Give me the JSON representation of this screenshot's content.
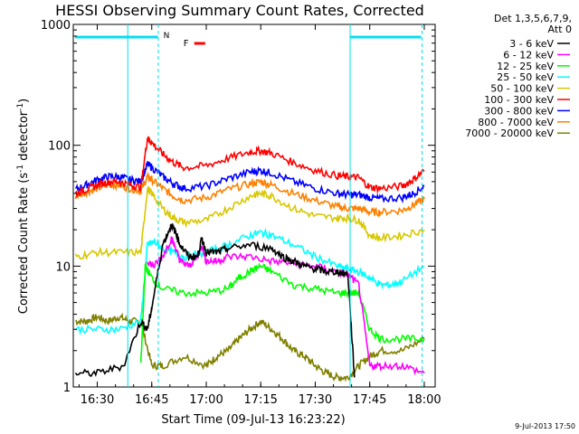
{
  "chart_data": {
    "type": "line",
    "title": "HESSI Observing Summary Count Rates, Corrected",
    "xlabel": "Start Time (09-Jul-13 16:23:22)",
    "ylabel": "Corrected Count Rate (s",
    "ylabel_sup": "-1",
    "ylabel_mid": " detector",
    "ylabel_end": ")",
    "y_scale": "log",
    "ylim": [
      1,
      1000
    ],
    "xlim": [
      16.39,
      18.05
    ],
    "y_ticks": [
      {
        "value": 1,
        "label": "1"
      },
      {
        "value": 10,
        "label": "10"
      },
      {
        "value": 100,
        "label": "100"
      },
      {
        "value": 1000,
        "label": "1000"
      }
    ],
    "x_ticks": [
      {
        "value": 16.5,
        "label": "16:30"
      },
      {
        "value": 16.75,
        "label": "16:45"
      },
      {
        "value": 17.0,
        "label": "17:00"
      },
      {
        "value": 17.25,
        "label": "17:15"
      },
      {
        "value": 17.5,
        "label": "17:30"
      },
      {
        "value": 17.75,
        "label": "17:45"
      },
      {
        "value": 18.0,
        "label": "18:00"
      }
    ],
    "legend": {
      "header1": "Det 1,3,5,6,7,9,",
      "header2": "Att 0",
      "placement": "right"
    },
    "series": [
      {
        "name": "3 - 6 keV",
        "color": "#000000",
        "x": [
          16.4,
          16.5,
          16.62,
          16.7,
          16.73,
          16.75,
          16.8,
          16.84,
          16.86,
          16.88,
          16.92,
          16.96,
          16.98,
          17.0,
          17.05,
          17.1,
          17.2,
          17.3,
          17.35,
          17.4,
          17.45,
          17.5,
          17.55,
          17.6,
          17.65,
          17.68
        ],
        "y": [
          1.3,
          1.3,
          1.5,
          3.5,
          3.0,
          4.5,
          15,
          22,
          19,
          15,
          12,
          12,
          17,
          13,
          13,
          14,
          15,
          14,
          12,
          11,
          10,
          9.5,
          9,
          9,
          8.5,
          1.2
        ]
      },
      {
        "name": "6 - 12 keV",
        "color": "#ff00ff",
        "x": [
          16.73,
          16.76,
          16.8,
          16.84,
          16.86,
          16.88,
          16.92,
          16.96,
          16.98,
          17.0,
          17.05,
          17.1,
          17.2,
          17.3,
          17.4,
          17.5,
          17.6,
          17.65,
          17.7,
          17.75,
          17.8,
          17.9,
          18.0
        ],
        "y": [
          11,
          10,
          12,
          17,
          14,
          11,
          10,
          12,
          15,
          11,
          11,
          12,
          12,
          11,
          10.5,
          10,
          9,
          8.5,
          7,
          1.5,
          1.5,
          1.5,
          1.3
        ]
      },
      {
        "name": "12 - 25 keV",
        "color": "#00ff00",
        "x": [
          16.7,
          16.72,
          16.75,
          16.8,
          16.9,
          17.0,
          17.1,
          17.15,
          17.2,
          17.25,
          17.3,
          17.4,
          17.5,
          17.6,
          17.66,
          17.7,
          17.75,
          17.8,
          17.9,
          18.0
        ],
        "y": [
          1.5,
          10,
          8,
          6.5,
          6,
          6,
          6.5,
          8,
          9,
          10,
          9,
          7,
          6.5,
          6,
          6,
          6,
          3,
          2.5,
          2.5,
          2.5
        ]
      },
      {
        "name": "25 - 50 keV",
        "color": "#00ffff",
        "x": [
          16.4,
          16.5,
          16.6,
          16.7,
          16.73,
          16.76,
          16.8,
          16.85,
          16.9,
          17.0,
          17.1,
          17.2,
          17.25,
          17.3,
          17.4,
          17.5,
          17.6,
          17.65,
          17.7,
          17.75,
          17.8,
          17.85,
          17.9,
          18.0
        ],
        "y": [
          3,
          3,
          3,
          3.5,
          15,
          16,
          14,
          13,
          12,
          13,
          15,
          18,
          19,
          18,
          15,
          12,
          10,
          9.5,
          9,
          8,
          7,
          7,
          7.5,
          10
        ]
      },
      {
        "name": "50 - 100 keV",
        "color": "#d8c800",
        "x": [
          16.4,
          16.5,
          16.6,
          16.7,
          16.73,
          16.75,
          16.8,
          16.85,
          16.9,
          17.0,
          17.1,
          17.2,
          17.25,
          17.3,
          17.4,
          17.5,
          17.6,
          17.65,
          17.7,
          17.75,
          17.8,
          17.9,
          18.0
        ],
        "y": [
          12,
          13,
          13,
          13,
          44,
          40,
          30,
          25,
          23,
          24,
          30,
          38,
          40,
          38,
          30,
          26,
          25,
          25,
          24,
          18,
          17,
          18,
          20
        ]
      },
      {
        "name": "100 - 300 keV",
        "color": "#ff0000",
        "x": [
          16.4,
          16.45,
          16.5,
          16.55,
          16.6,
          16.65,
          16.7,
          16.73,
          16.75,
          16.8,
          16.85,
          16.9,
          17.0,
          17.1,
          17.2,
          17.25,
          17.3,
          17.4,
          17.5,
          17.6,
          17.65,
          17.7,
          17.75,
          17.8,
          17.9,
          17.95,
          18.0
        ],
        "y": [
          40,
          43,
          47,
          50,
          50,
          47,
          45,
          115,
          105,
          85,
          72,
          65,
          68,
          78,
          88,
          90,
          86,
          72,
          62,
          56,
          55,
          54,
          45,
          44,
          46,
          52,
          62
        ]
      },
      {
        "name": "300 - 800 keV",
        "color": "#0000ff",
        "x": [
          16.4,
          16.45,
          16.5,
          16.55,
          16.6,
          16.65,
          16.7,
          16.73,
          16.75,
          16.8,
          16.85,
          16.9,
          17.0,
          17.1,
          17.2,
          17.25,
          17.3,
          17.4,
          17.5,
          17.6,
          17.65,
          17.7,
          17.75,
          17.8,
          17.9,
          17.95,
          18.0
        ],
        "y": [
          43,
          47,
          52,
          55,
          55,
          52,
          50,
          70,
          66,
          55,
          48,
          44,
          46,
          53,
          60,
          62,
          59,
          50,
          44,
          40,
          39,
          39,
          37,
          36,
          37,
          40,
          46
        ]
      },
      {
        "name": "800 - 7000 keV",
        "color": "#ff8000",
        "x": [
          16.4,
          16.45,
          16.5,
          16.55,
          16.6,
          16.65,
          16.7,
          16.73,
          16.75,
          16.8,
          16.85,
          16.9,
          17.0,
          17.1,
          17.2,
          17.25,
          17.3,
          17.4,
          17.5,
          17.6,
          17.65,
          17.7,
          17.75,
          17.8,
          17.9,
          17.95,
          18.0
        ],
        "y": [
          38,
          41,
          44,
          47,
          47,
          44,
          42,
          55,
          52,
          44,
          38,
          35,
          37,
          43,
          48,
          50,
          47,
          40,
          35,
          31,
          30,
          30,
          28,
          28,
          29,
          32,
          36
        ]
      },
      {
        "name": "7000 - 20000 keV",
        "color": "#808000",
        "x": [
          16.4,
          16.45,
          16.5,
          16.55,
          16.6,
          16.65,
          16.7,
          16.75,
          16.8,
          16.9,
          17.0,
          17.05,
          17.1,
          17.15,
          17.2,
          17.25,
          17.3,
          17.35,
          17.4,
          17.45,
          17.5,
          17.55,
          17.6,
          17.65,
          17.7,
          17.75,
          17.8,
          17.9,
          18.0
        ],
        "y": [
          3.5,
          3.5,
          3.8,
          3.5,
          3.8,
          3.5,
          3.5,
          1.5,
          1.5,
          1.8,
          1.5,
          1.8,
          2.0,
          2.5,
          3.0,
          3.5,
          3.0,
          2.5,
          2.0,
          1.8,
          1.5,
          1.3,
          1.2,
          1.2,
          1.5,
          1.8,
          2.0,
          2.0,
          2.5
        ]
      }
    ],
    "annotations": {
      "night_start": 16.78,
      "night_end": 17.66,
      "data_end": 17.99,
      "data_start": 16.64,
      "flag_N_label": "N",
      "flag_N_x": 16.795,
      "flag_F_label": "F",
      "flag_F_x_start": 16.945,
      "flag_F_x_end": 16.995
    },
    "footer_date": "9-Jul-2013 17:50"
  }
}
